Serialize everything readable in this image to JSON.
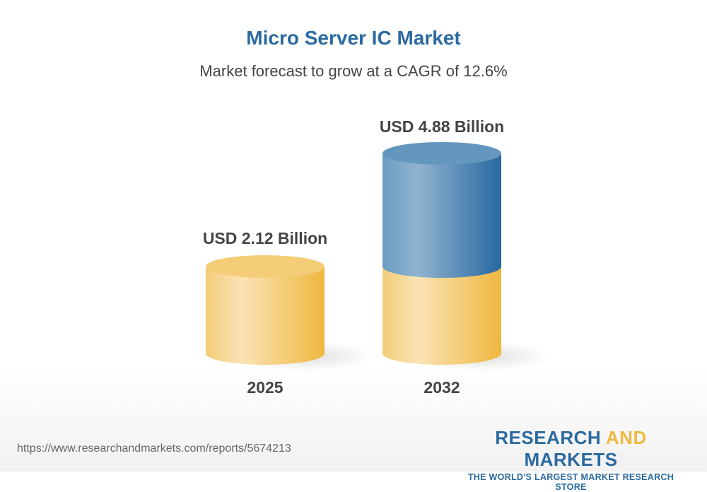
{
  "title": "Micro Server IC Market",
  "subtitle": "Market forecast to grow at a CAGR of 12.6%",
  "chart_data": {
    "type": "bar",
    "style": "3d-cylinder",
    "categories": [
      "2025",
      "2032"
    ],
    "values": [
      2.12,
      4.88
    ],
    "data_labels": [
      "USD 2.12 Billion",
      "USD 4.88 Billion"
    ],
    "unit": "USD Billion",
    "cagr": "12.6%",
    "colors": {
      "base": "#f0b840",
      "growth": "#2b6aa0"
    }
  },
  "footer": {
    "url": "https://www.researchandmarkets.com/reports/5674213",
    "logo_part1": "RESEARCH ",
    "logo_part2": "AND",
    "logo_part3": " MARKETS",
    "tagline": "THE WORLD'S LARGEST MARKET RESEARCH STORE"
  }
}
